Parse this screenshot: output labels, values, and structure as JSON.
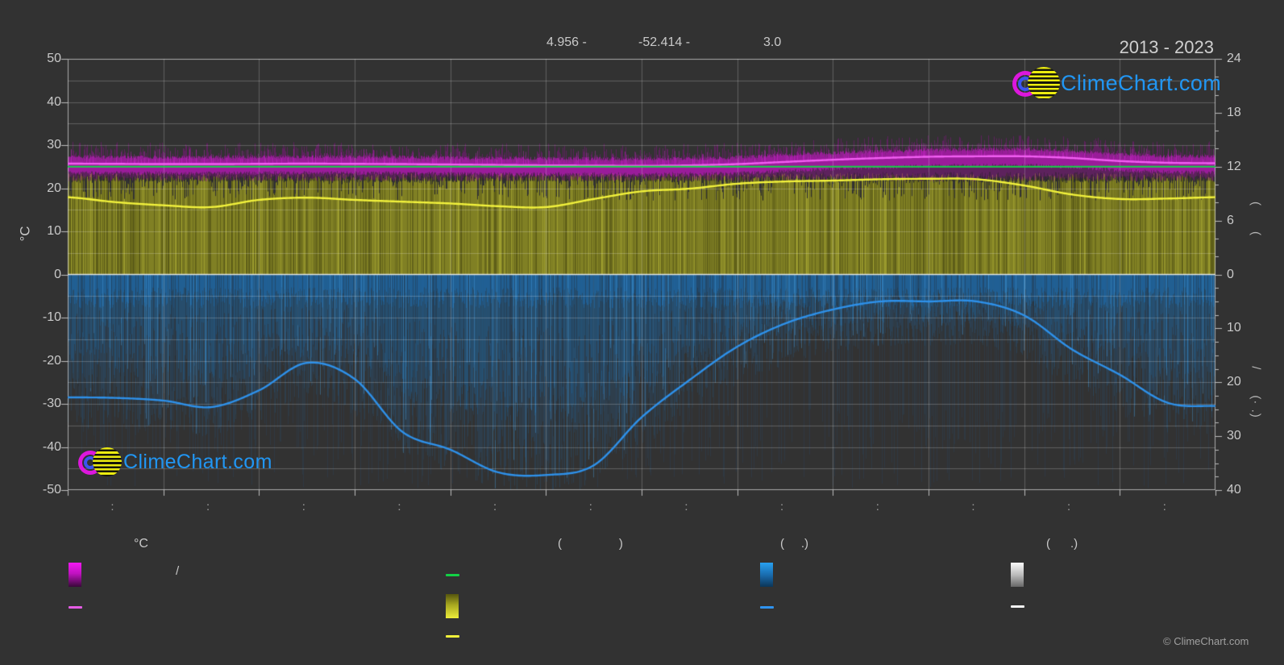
{
  "app": {
    "title": "2013 - 2023",
    "watermark": "ClimeChart.com",
    "copyright": "© ClimeChart.com"
  },
  "header": {
    "annotations": [
      "4.956 -",
      "-52.414 -",
      "3.0"
    ]
  },
  "axes": {
    "left": {
      "label": "°C",
      "ticks": [
        "50",
        "40",
        "30",
        "20",
        "10",
        "0",
        "-10",
        "-20",
        "-30",
        "-40",
        "-50"
      ],
      "tick_values": [
        50,
        40,
        30,
        20,
        10,
        0,
        -10,
        -20,
        -30,
        -40,
        -50
      ]
    },
    "right_upper": {
      "ticks": [
        "24",
        "18",
        "12",
        "6",
        "0"
      ],
      "tick_values": [
        24,
        18,
        12,
        6,
        0
      ],
      "rotated_label": "(      ("
    },
    "right_lower": {
      "ticks": [
        "10",
        "20",
        "30",
        "40"
      ],
      "tick_values": [
        10,
        20,
        30,
        40
      ],
      "rotated_label": "/      (· .)"
    },
    "x": {
      "month_labels": [
        "▪ ▪",
        "▪ ▪",
        "▪ ▪",
        "▪ ▪",
        "▪ ▪",
        "▪ ▪",
        "▪ ▪",
        "▪ ▪",
        "▪ ▪",
        "▪ ▪",
        "▪ ▪",
        "▪ ▪"
      ]
    }
  },
  "chart_data": {
    "type": "line",
    "title": "2013 - 2023",
    "x_range_months": [
      0,
      12
    ],
    "samples_per_month": 2,
    "axis_ranges": {
      "temp_c": [
        -50,
        50
      ],
      "hours": [
        0,
        24
      ],
      "precip_down": [
        0,
        40
      ]
    },
    "grid": {
      "horizontal_step_c": 5,
      "vertical_step_months": 1,
      "zero_line": true
    },
    "series": [
      {
        "name": "max-temp-mean",
        "axis": "temp_c",
        "color": "#f25ff2",
        "values": [
          25.7,
          25.65,
          25.6,
          25.6,
          25.65,
          25.7,
          25.65,
          25.6,
          25.5,
          25.4,
          25.3,
          25.25,
          25.2,
          25.3,
          25.6,
          26.1,
          26.6,
          27.0,
          27.3,
          27.4,
          27.4,
          27.0,
          26.3,
          25.9,
          25.8
        ]
      },
      {
        "name": "daylight-duration",
        "axis": "hours",
        "color": "#12d145",
        "values": [
          12,
          12,
          12,
          12,
          12,
          12,
          12,
          12,
          12,
          12,
          12,
          12,
          12,
          12,
          12,
          12,
          12,
          12,
          12,
          12,
          12,
          12,
          12,
          12,
          12
        ]
      },
      {
        "name": "sunshine-duration-mean",
        "axis": "hours",
        "color": "#f2f23c",
        "values": [
          8.6,
          8.05,
          7.7,
          7.5,
          8.3,
          8.55,
          8.3,
          8.1,
          7.9,
          7.6,
          7.5,
          8.4,
          9.25,
          9.55,
          10.1,
          10.35,
          10.45,
          10.6,
          10.65,
          10.6,
          9.9,
          8.9,
          8.4,
          8.45,
          8.6
        ]
      },
      {
        "name": "precipitation-mean",
        "axis": "precip_down",
        "color": "#2e91ea",
        "values": [
          22.8,
          22.9,
          23.4,
          24.6,
          21.5,
          16.4,
          19.4,
          29.2,
          32.5,
          36.7,
          37.2,
          35.4,
          26.5,
          19.6,
          13.4,
          9.1,
          6.5,
          5.0,
          5.0,
          5.0,
          7.6,
          13.9,
          18.6,
          23.8,
          24.4
        ]
      }
    ],
    "bands": [
      {
        "name": "max-temp-noise",
        "axis": "temp_c",
        "color": "#c013c0",
        "approx_range": [
          21.6,
          31
        ]
      },
      {
        "name": "sunshine-noise",
        "axis": "hours",
        "color": "#b2b21e",
        "approx_range": [
          0,
          11.3
        ]
      },
      {
        "name": "precipitation-noise",
        "axis": "precip_down",
        "color": "#1d6fae",
        "approx_range": [
          0,
          40
        ]
      }
    ]
  },
  "legend": {
    "col1": {
      "header": "°C",
      "row1_label": "/"
    },
    "col2": {
      "header": "(                 )"
    },
    "col3": {
      "header": "(     .)"
    },
    "col4": {
      "header": "(      .)"
    }
  }
}
